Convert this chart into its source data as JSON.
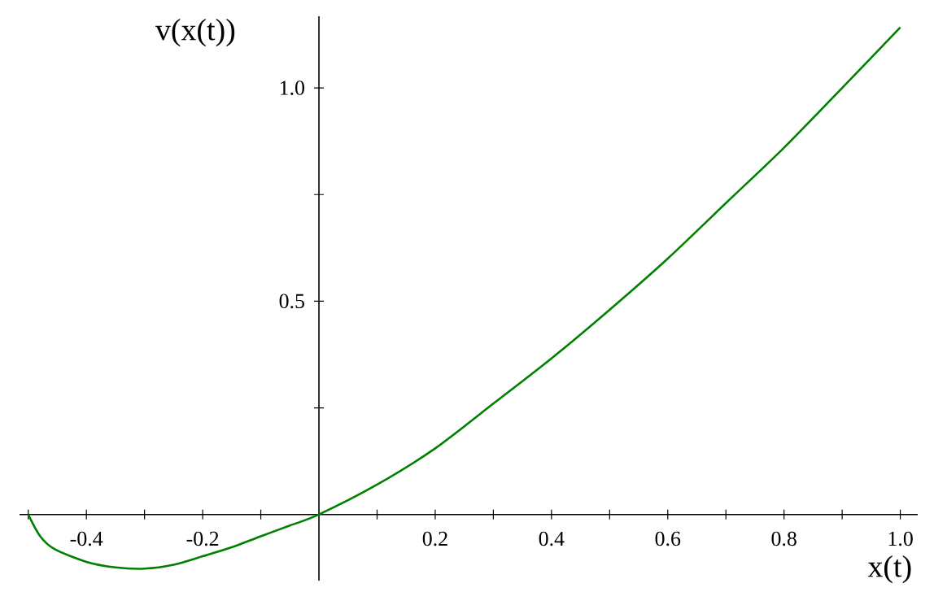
{
  "chart_data": {
    "type": "line",
    "xlabel": "x(t)",
    "ylabel": "v(x(t))",
    "xlim": [
      -0.515,
      1.03
    ],
    "ylim": [
      -0.155,
      1.168
    ],
    "xticks": [
      {
        "value": -0.5,
        "label": null
      },
      {
        "value": -0.4,
        "label": "-0.4"
      },
      {
        "value": -0.3,
        "label": null
      },
      {
        "value": -0.2,
        "label": "-0.2"
      },
      {
        "value": -0.1,
        "label": null
      },
      {
        "value": 0.1,
        "label": null
      },
      {
        "value": 0.2,
        "label": "0.2"
      },
      {
        "value": 0.3,
        "label": null
      },
      {
        "value": 0.4,
        "label": "0.4"
      },
      {
        "value": 0.5,
        "label": null
      },
      {
        "value": 0.6,
        "label": "0.6"
      },
      {
        "value": 0.7,
        "label": null
      },
      {
        "value": 0.8,
        "label": "0.8"
      },
      {
        "value": 0.9,
        "label": null
      },
      {
        "value": 1.0,
        "label": "1.0"
      }
    ],
    "yticks": [
      {
        "value": 0.25,
        "label": null
      },
      {
        "value": 0.5,
        "label": "0.5"
      },
      {
        "value": 0.75,
        "label": null
      },
      {
        "value": 1.0,
        "label": "1.0"
      }
    ],
    "series": [
      {
        "color": "#008000",
        "line_style": "solid",
        "x": [
          -0.5,
          -0.48,
          -0.455,
          -0.4,
          -0.35,
          -0.3,
          -0.25,
          -0.2,
          -0.15,
          -0.1,
          -0.05,
          0,
          0.1,
          0.2,
          0.3,
          0.4,
          0.5,
          0.6,
          0.7,
          0.8,
          0.9,
          1.0
        ],
        "values": [
          0,
          -0.05,
          -0.081,
          -0.111,
          -0.124,
          -0.127,
          -0.118,
          -0.098,
          -0.077,
          -0.051,
          -0.026,
          0,
          0.07,
          0.155,
          0.26,
          0.366,
          0.48,
          0.6,
          0.73,
          0.86,
          1.0,
          1.142
        ]
      }
    ]
  }
}
